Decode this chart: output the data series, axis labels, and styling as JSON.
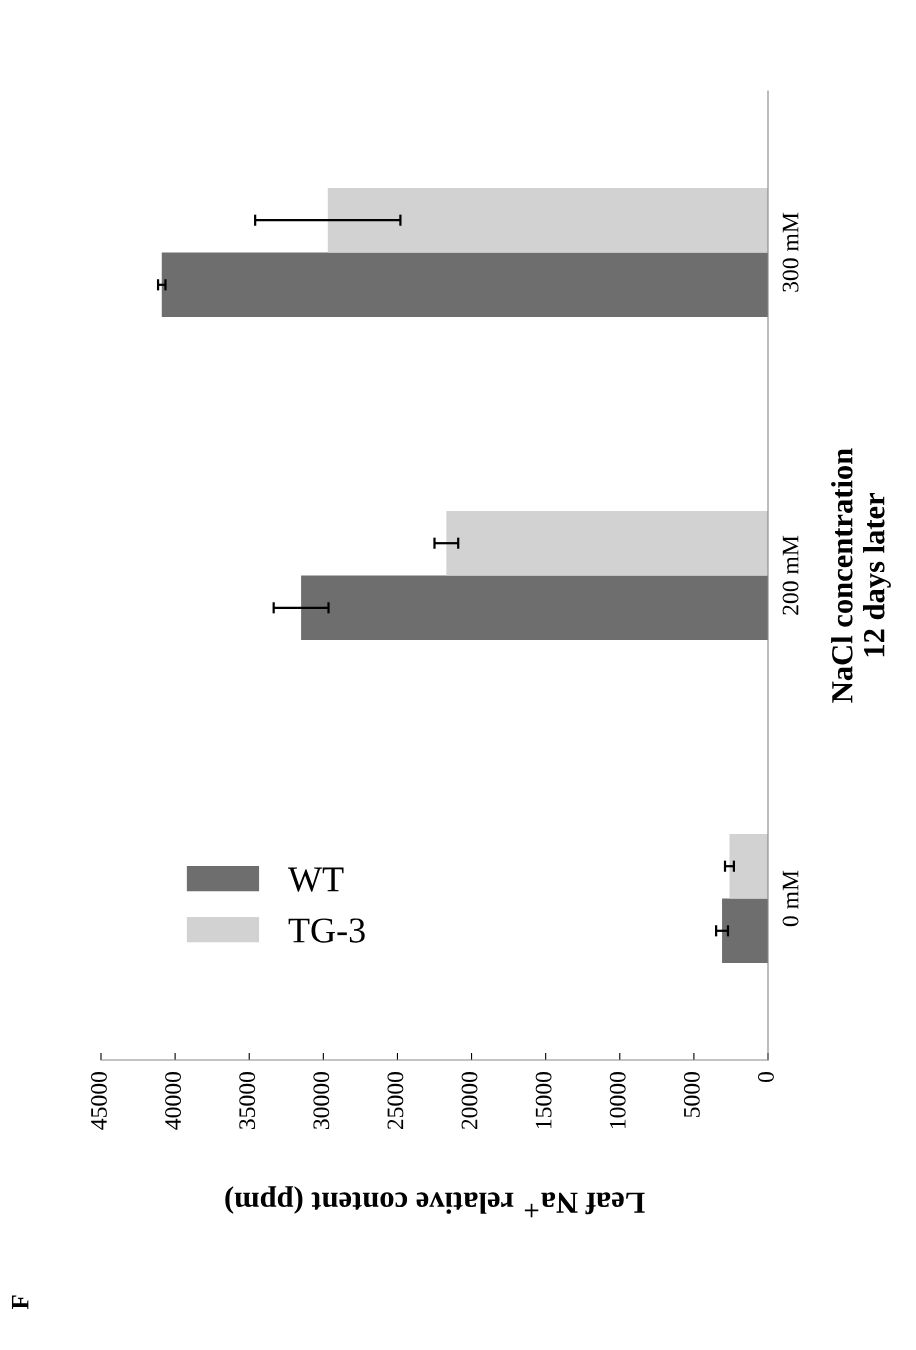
{
  "chart_data": {
    "type": "bar",
    "orientation": "horizontal",
    "categories": [
      "300 mM",
      "200 mM",
      "0 mM"
    ],
    "series": [
      {
        "name": "WT",
        "color": "#6e6e6e",
        "values": [
          40900,
          31500,
          3100
        ],
        "errors": [
          250,
          1850,
          400
        ]
      },
      {
        "name": "TG-3",
        "color": "#d2d2d2",
        "values": [
          29700,
          21700,
          2600
        ],
        "errors": [
          4900,
          800,
          300
        ]
      }
    ],
    "xlabel": "Leaf Na$^{+}$ relative content (ppm)",
    "ylabel": "NaCl concentration\n12 days later",
    "xlim": [
      45000,
      0
    ],
    "xticks": [
      0,
      5000,
      10000,
      15000,
      20000,
      25000,
      30000,
      35000,
      40000,
      45000
    ],
    "legend": "bottom left",
    "grid": false,
    "annotations": [
      "F"
    ]
  }
}
